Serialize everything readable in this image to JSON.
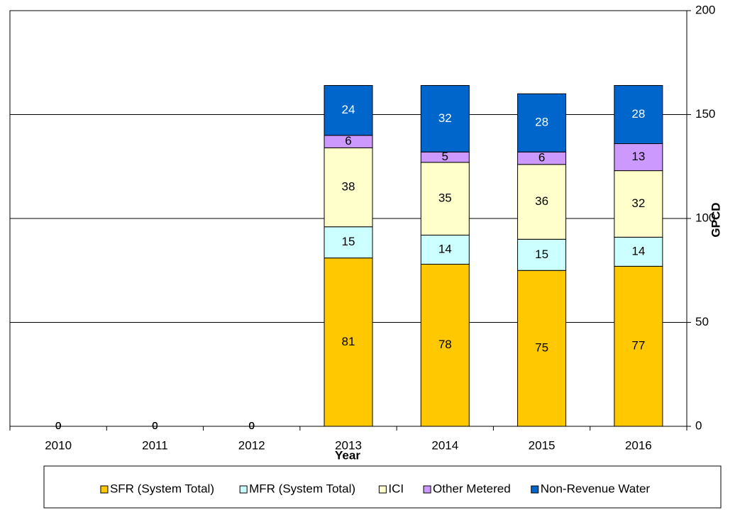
{
  "chart_data": {
    "type": "stacked_bar",
    "x_label": "Year",
    "y_label": "GPCD",
    "categories": [
      "2010",
      "2011",
      "2012",
      "2013",
      "2014",
      "2015",
      "2016"
    ],
    "series": [
      {
        "name": "SFR (System Total)",
        "color": "#ffc800",
        "values": [
          0,
          0,
          0,
          81,
          78,
          75,
          77
        ]
      },
      {
        "name": "MFR (System Total)",
        "color": "#ccffff",
        "values": [
          0,
          0,
          0,
          15,
          14,
          15,
          14
        ]
      },
      {
        "name": "ICI",
        "color": "#ffffcc",
        "values": [
          0,
          0,
          0,
          38,
          35,
          36,
          32
        ]
      },
      {
        "name": "Other Metered",
        "color": "#cc99ff",
        "values": [
          0,
          0,
          0,
          6,
          5,
          6,
          13
        ]
      },
      {
        "name": "Non-Revenue Water",
        "color": "#0066cc",
        "values": [
          0,
          0,
          0,
          24,
          32,
          28,
          28
        ]
      }
    ],
    "ylim": [
      0,
      200
    ],
    "yticks": [
      0,
      50,
      100,
      150,
      200
    ],
    "y_axis_side": "right",
    "grid": true,
    "legend": "bottom"
  }
}
